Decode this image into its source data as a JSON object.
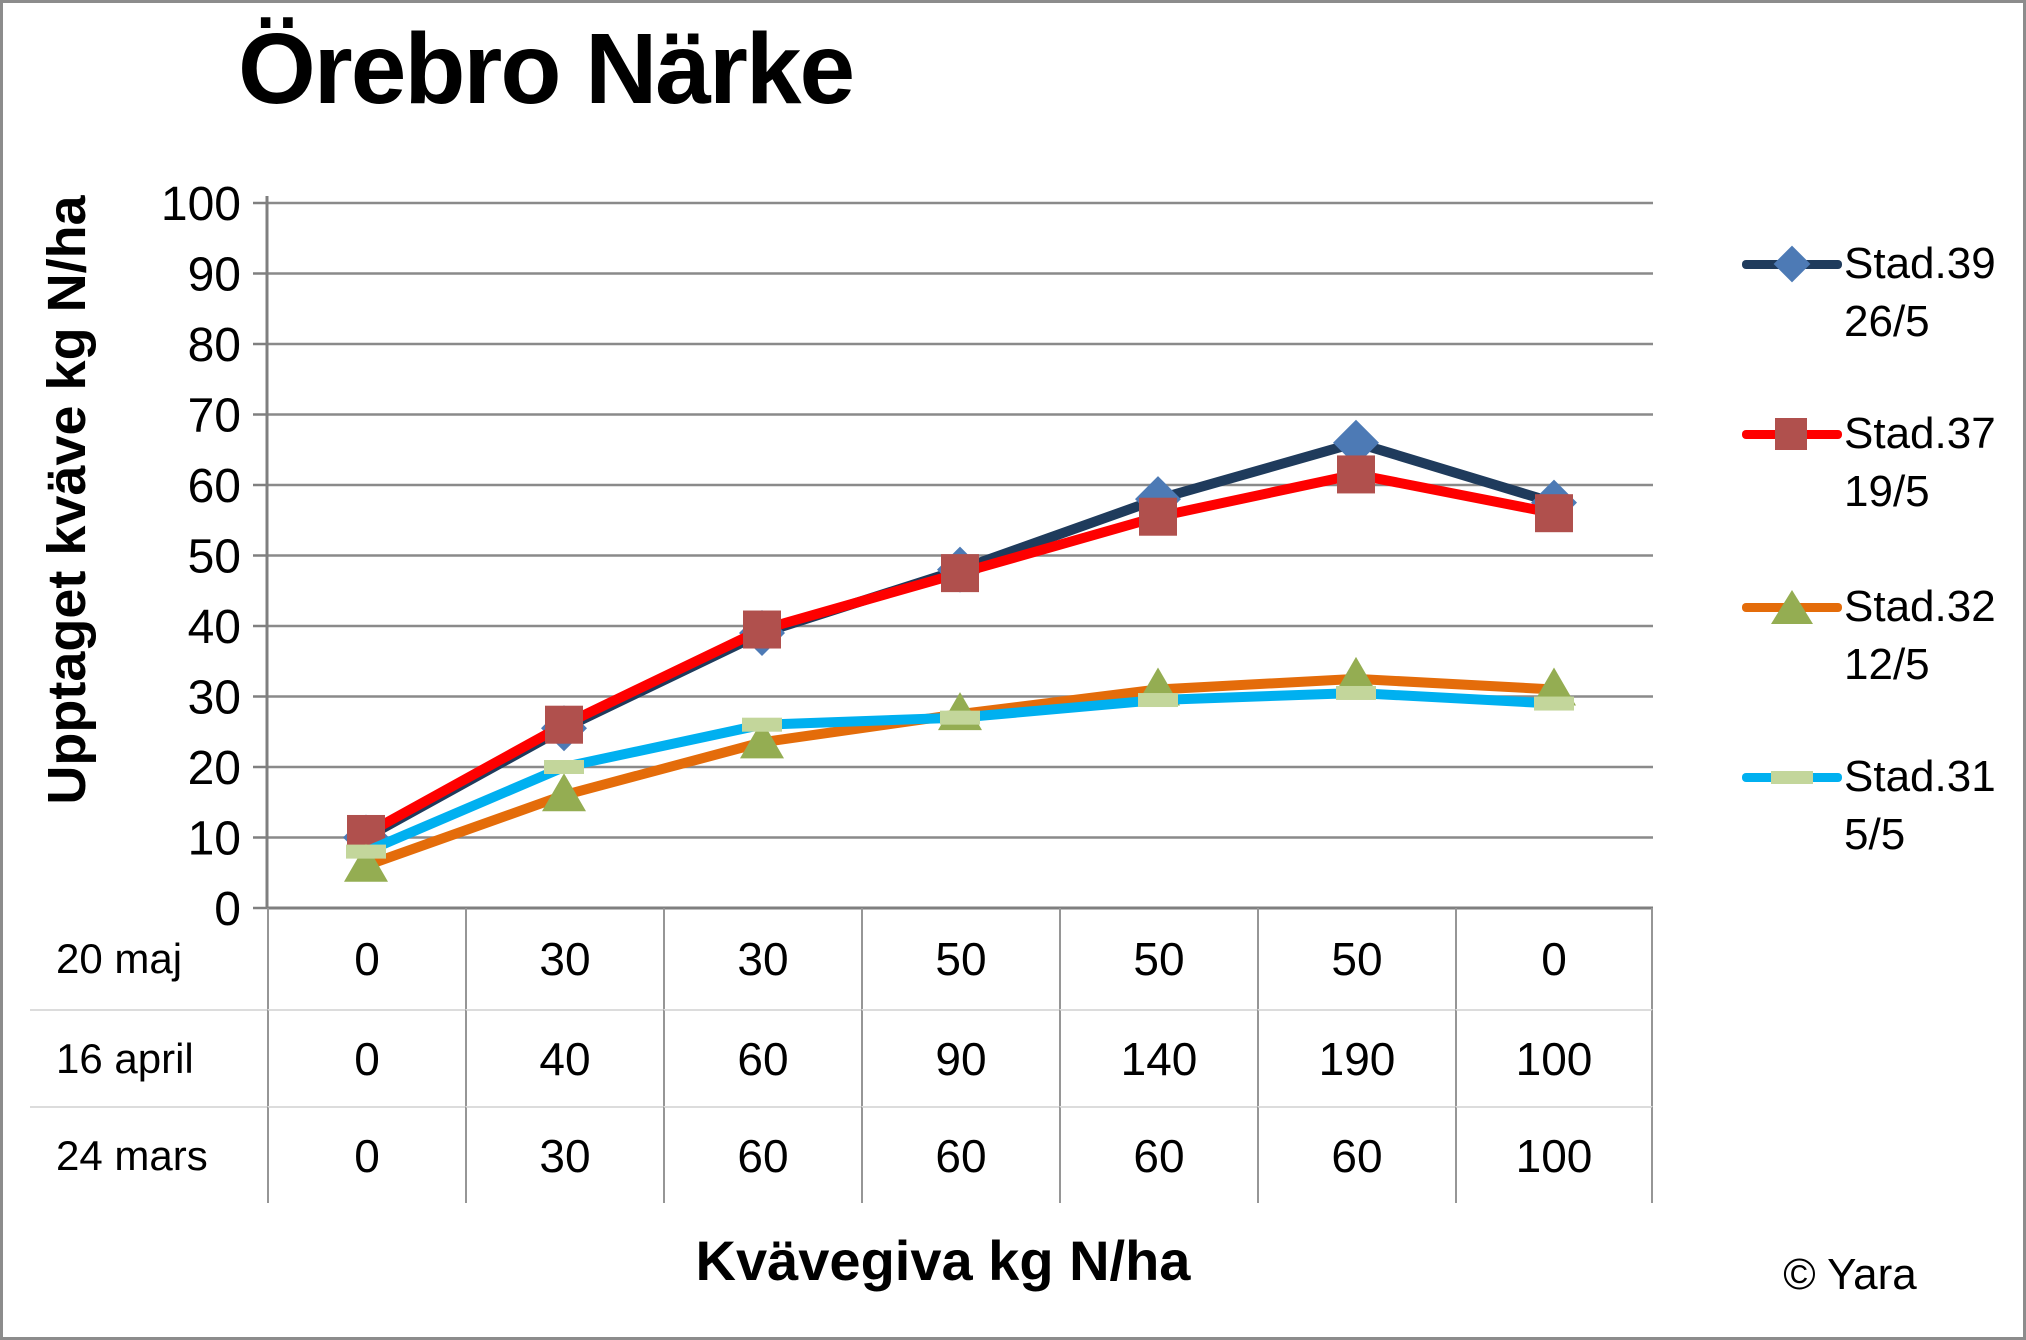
{
  "copyright": "© Yara",
  "chart_data": {
    "type": "line",
    "title": "Örebro Närke",
    "xlabel": "Kvävegiva kg N/ha",
    "ylabel": "Upptaget kväve kg N/ha",
    "ylim": [
      0,
      100
    ],
    "ytick_step": 10,
    "grid": true,
    "legend_position": "right",
    "yticks": [
      "0",
      "10",
      "20",
      "30",
      "40",
      "50",
      "60",
      "70",
      "80",
      "90",
      "100"
    ],
    "series": [
      {
        "name": "Stad.39",
        "date": "26/5",
        "values": [
          10,
          25.5,
          39,
          48,
          58,
          66,
          57.5
        ],
        "line_color": "#1f3b5c",
        "marker": "diamond",
        "marker_color": "#4d7ab5"
      },
      {
        "name": "Stad.37",
        "date": "19/5",
        "values": [
          10.5,
          26,
          39.5,
          47.5,
          55.5,
          61.5,
          56
        ],
        "line_color": "#fe0000",
        "marker": "square",
        "marker_color": "#b0504d"
      },
      {
        "name": "Stad.32",
        "date": "12/5",
        "values": [
          6,
          16,
          23.5,
          27.5,
          31,
          32.5,
          31
        ],
        "line_color": "#e46c0a",
        "marker": "triangle",
        "marker_color": "#94ad52"
      },
      {
        "name": "Stad.31",
        "date": "5/5",
        "values": [
          8,
          20,
          26,
          27,
          29.5,
          30.5,
          29
        ],
        "line_color": "#00b0f0",
        "marker": "dash",
        "marker_color": "#c3d69b"
      }
    ],
    "x_table": {
      "rows": [
        {
          "label": "20 maj",
          "values": [
            "0",
            "30",
            "30",
            "50",
            "50",
            "50",
            "0"
          ]
        },
        {
          "label": "16 april",
          "values": [
            "0",
            "40",
            "60",
            "90",
            "140",
            "190",
            "100"
          ]
        },
        {
          "label": "24 mars",
          "values": [
            "0",
            "30",
            "60",
            "60",
            "60",
            "60",
            "100"
          ]
        }
      ]
    }
  }
}
